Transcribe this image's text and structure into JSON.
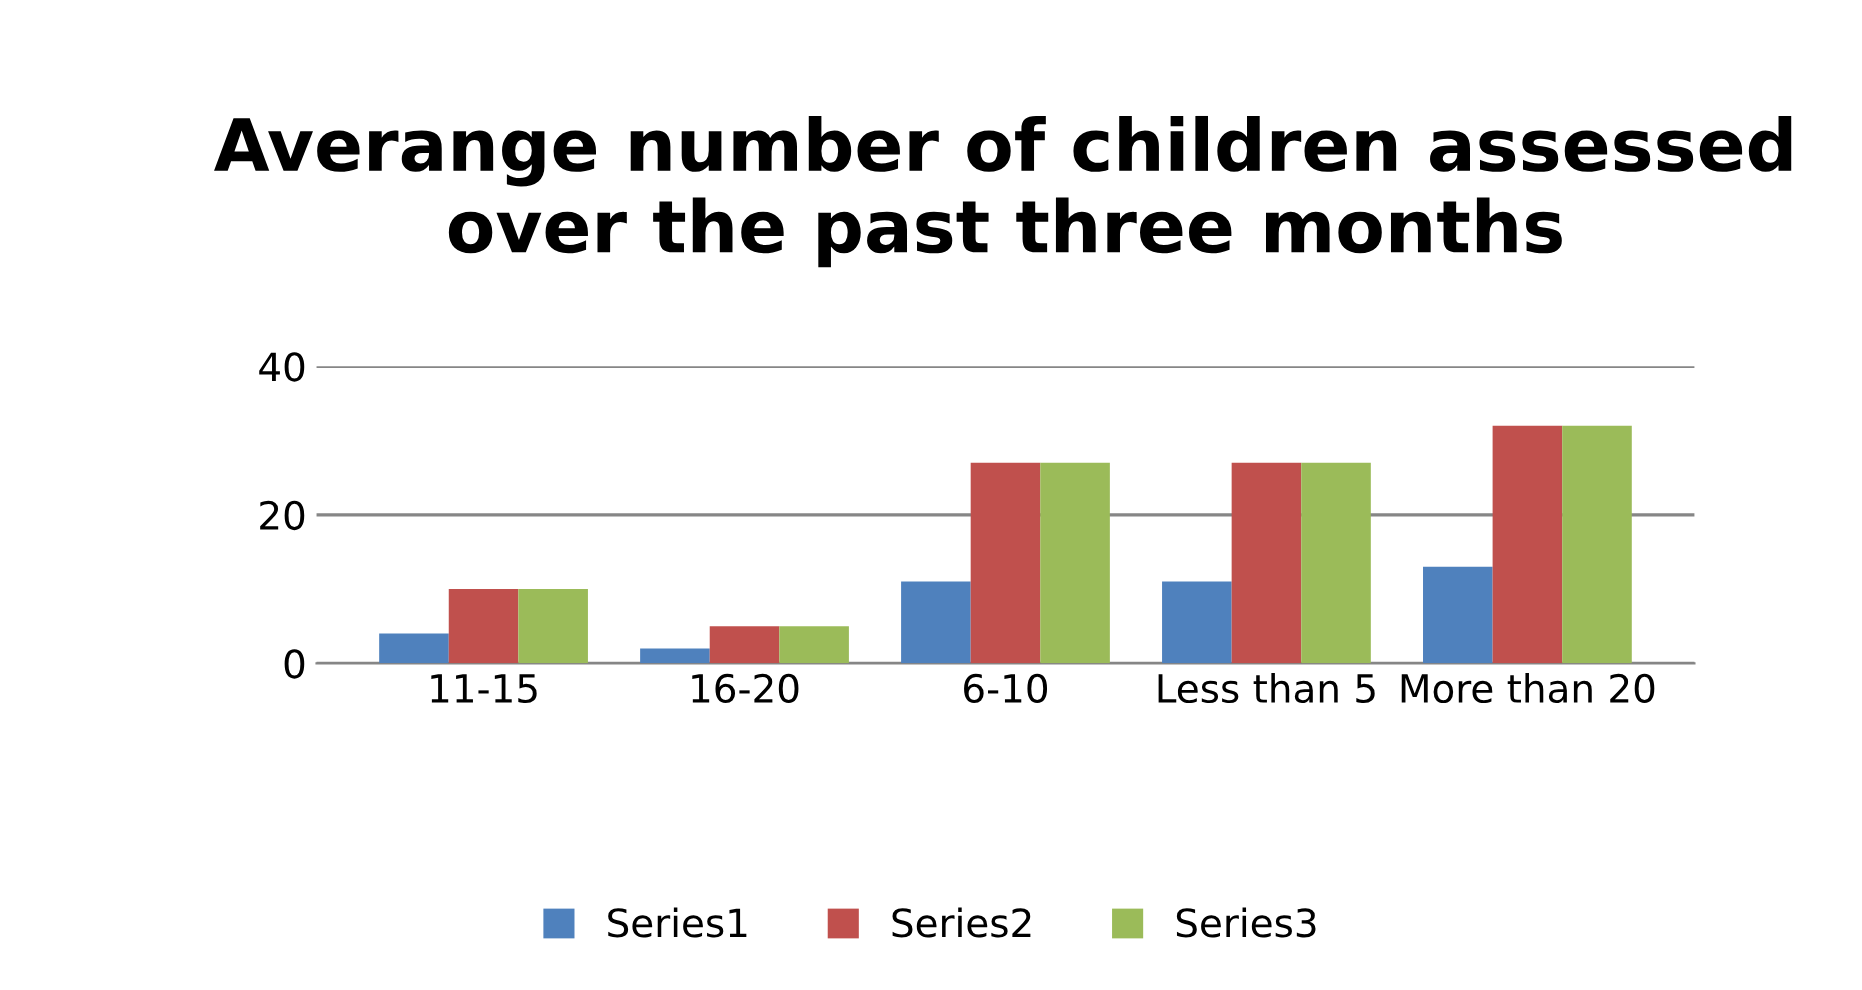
{
  "chart_data": {
    "type": "bar",
    "title": "Averange number of children assessed over the past three months",
    "categories": [
      "11-15",
      "16-20",
      "6-10",
      "Less than 5",
      "More than 20"
    ],
    "series": [
      {
        "name": "Series1",
        "color": "#4f81bd",
        "values": [
          4,
          2,
          11,
          11,
          13
        ]
      },
      {
        "name": "Series2",
        "color": "#c0504d",
        "values": [
          10,
          5,
          27,
          27,
          32
        ]
      },
      {
        "name": "Series3",
        "color": "#9bbb59",
        "values": [
          10,
          5,
          27,
          27,
          32
        ]
      }
    ],
    "ylim": [
      0,
      40
    ],
    "yticks": [
      0,
      20,
      40
    ],
    "grid": "y",
    "legend": "bottom"
  }
}
